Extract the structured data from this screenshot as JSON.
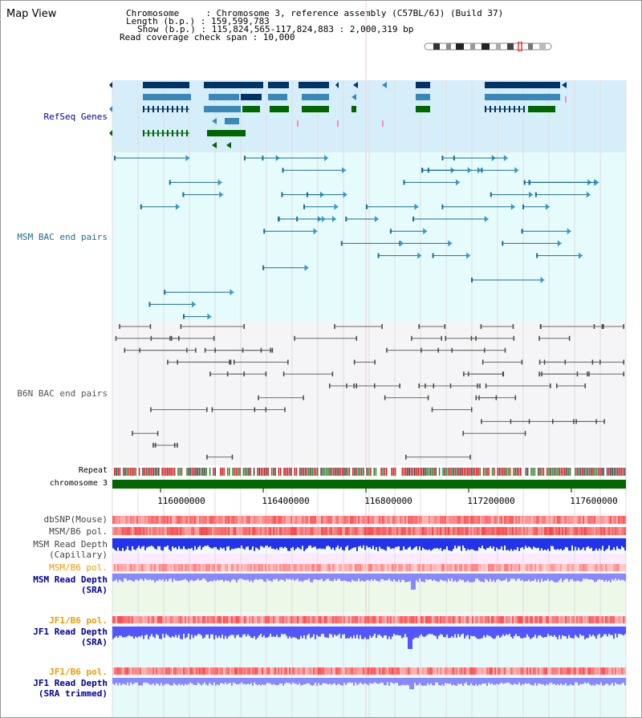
{
  "header": {
    "title": "Map View",
    "lines": [
      "Chromosome     : Chromosome 3, reference assembly (C57BL/6J) (Build 37)",
      "Length (b.p.) : 159,599,783",
      "Show (b.p.) : 115,824,565-117,824,883 : 2,000,319 bp",
      "Read coverage check span : 10,000"
    ]
  },
  "colors": {
    "refseq_bg": "#d6eef9",
    "msm_bg": "#e6fbfb",
    "b6n_bg": "#f5f5f7",
    "refseq_dark": "#003366",
    "refseq_mid": "#3a88b8",
    "refseq_green": "#006600",
    "msm_line": "#1b6e8e",
    "b6n_line": "#666666",
    "chrom_green": "#006600",
    "snp_red": "#ff5555",
    "depth_blue": "#2233ee",
    "sra_blue": "#8888ff",
    "label_blue": "#000099",
    "label_orange": "#ee9900"
  },
  "tracks": {
    "refseq": "RefSeq Genes",
    "msm_bac": "MSM BAC end pairs",
    "b6n_bac": "B6N BAC end pairs",
    "repeat": "Repeat",
    "chromosome": "chromosome 3",
    "dbsnp": "dbSNP(Mouse)",
    "msm_b6_pol_1": "MSM/B6 pol.",
    "msm_depth_cap_1": "MSM Read Depth",
    "msm_depth_cap_2": "(Capillary)",
    "msm_b6_pol_2": "MSM/B6 pol.",
    "msm_depth_sra_1": "MSM Read Depth",
    "msm_depth_sra_2": "(SRA)",
    "jf1_b6_pol_1": "JF1/B6 pol.",
    "jf1_depth_sra_1": "JF1 Read Depth",
    "jf1_depth_sra_2": "(SRA)",
    "jf1_b6_pol_2": "JF1/B6 pol.",
    "jf1_depth_trim_1": "JF1 Read Depth",
    "jf1_depth_trim_2": "(SRA trimmed)"
  },
  "axis": {
    "ticks": [
      "116000000",
      "116400000",
      "116800000",
      "117200000",
      "117600000"
    ]
  }
}
